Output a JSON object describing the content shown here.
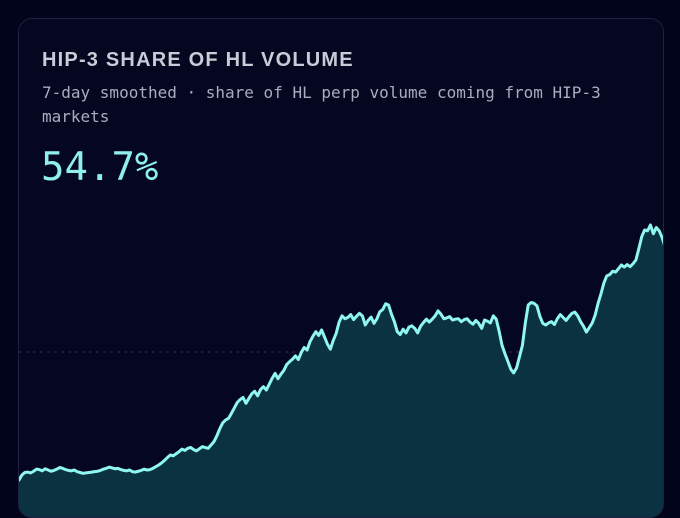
{
  "title": "HIP-3 SHARE OF HL VOLUME",
  "subtitle": "7-day smoothed · share of HL perp volume coming from HIP-3 markets",
  "headline_value": "54.7%",
  "colors": {
    "line": "#8ff7ee",
    "fill": "#0c3a47",
    "background": "#04071f",
    "gridline": "#2a3050"
  },
  "chart_data": {
    "type": "area",
    "title": "HIP-3 SHARE OF HL VOLUME",
    "xlabel": "",
    "ylabel": "",
    "ylim": [
      0,
      60
    ],
    "grid": "single dashed reference line",
    "values": [
      1.2,
      2.4,
      3.0,
      3.1,
      2.9,
      3.3,
      3.8,
      3.7,
      3.4,
      3.9,
      3.6,
      3.3,
      3.5,
      3.8,
      4.2,
      4.0,
      3.7,
      3.5,
      3.4,
      3.6,
      3.2,
      3.0,
      2.8,
      2.9,
      3.0,
      3.1,
      3.2,
      3.3,
      3.5,
      3.8,
      4.0,
      4.3,
      4.1,
      3.9,
      4.0,
      3.7,
      3.5,
      3.4,
      3.6,
      3.2,
      3.1,
      3.3,
      3.5,
      3.8,
      3.6,
      3.7,
      4.0,
      4.4,
      4.8,
      5.3,
      5.9,
      6.6,
      7.2,
      7.0,
      7.5,
      8.0,
      8.6,
      8.3,
      8.8,
      9.0,
      8.5,
      8.2,
      8.7,
      9.2,
      9.0,
      8.8,
      9.6,
      10.4,
      11.8,
      13.5,
      14.9,
      15.6,
      16.0,
      17.2,
      18.5,
      19.8,
      20.5,
      21.0,
      19.6,
      20.8,
      21.9,
      22.5,
      21.4,
      22.9,
      23.6,
      22.8,
      24.2,
      25.6,
      26.8,
      25.5,
      26.6,
      27.5,
      28.9,
      29.6,
      30.2,
      31.0,
      30.1,
      31.8,
      33.0,
      32.4,
      34.4,
      35.7,
      36.8,
      35.9,
      37.2,
      35.5,
      33.8,
      32.6,
      34.7,
      36.4,
      39.1,
      40.6,
      39.9,
      40.2,
      40.9,
      39.7,
      40.5,
      41.2,
      40.6,
      38.4,
      39.5,
      40.3,
      38.8,
      39.9,
      41.6,
      42.1,
      43.5,
      43.2,
      41.0,
      39.2,
      36.8,
      36.1,
      37.4,
      36.5,
      37.9,
      38.2,
      37.6,
      36.5,
      38.1,
      39.0,
      39.8,
      39.1,
      39.8,
      40.6,
      41.8,
      41.0,
      39.9,
      40.1,
      40.4,
      39.6,
      39.8,
      39.9,
      39.2,
      39.7,
      39.9,
      39.1,
      38.6,
      39.5,
      38.8,
      37.6,
      39.6,
      39.3,
      38.9,
      40.6,
      39.8,
      36.9,
      33.5,
      31.5,
      29.7,
      27.8,
      26.9,
      28.1,
      30.8,
      33.5,
      38.9,
      43.2,
      43.8,
      43.6,
      43.0,
      40.5,
      38.8,
      38.4,
      38.9,
      39.2,
      38.5,
      39.9,
      40.9,
      40.2,
      39.5,
      40.4,
      41.2,
      41.5,
      40.6,
      39.2,
      38.1,
      36.7,
      37.8,
      38.9,
      40.8,
      43.6,
      45.9,
      48.5,
      50.2,
      50.5,
      51.3,
      51.1,
      51.9,
      52.8,
      52.3,
      52.9,
      52.4,
      53.1,
      54.0,
      56.7,
      59.6,
      61.2,
      61.0,
      62.4,
      60.3,
      61.8,
      61.0,
      59.4,
      57.2
    ]
  }
}
